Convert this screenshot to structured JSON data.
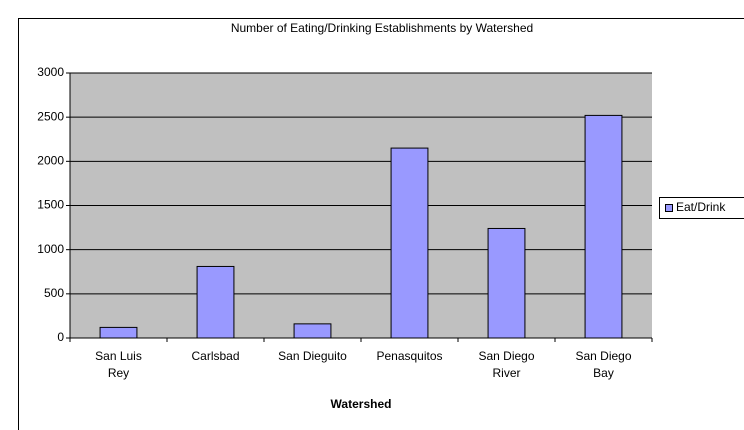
{
  "chart_data": {
    "type": "bar",
    "title": "Number of Eating/Drinking Establishments by Watershed",
    "x_label": "Watershed",
    "categories": [
      "San Luis Rey",
      "Carlsbad",
      "San Dieguito",
      "Penasquitos",
      "San Diego River",
      "San Diego Bay"
    ],
    "series": [
      {
        "name": "Eat/Drink",
        "color": "#9999ff",
        "values": [
          120,
          810,
          160,
          2150,
          1240,
          2520
        ]
      }
    ],
    "ylim": [
      0,
      3000
    ],
    "yticks": [
      0,
      500,
      1000,
      1500,
      2000,
      2500,
      3000
    ],
    "grid": true,
    "legend": "right"
  }
}
